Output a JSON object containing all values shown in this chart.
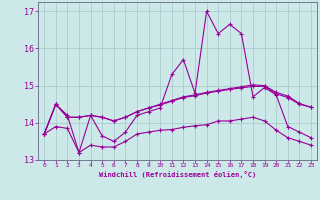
{
  "xlabel": "Windchill (Refroidissement éolien,°C)",
  "background_color": "#cce8e8",
  "grid_color": "#aacccc",
  "line_color": "#990099",
  "x": [
    0,
    1,
    2,
    3,
    4,
    5,
    6,
    7,
    8,
    9,
    10,
    11,
    12,
    13,
    14,
    15,
    16,
    17,
    18,
    19,
    20,
    21,
    22,
    23
  ],
  "series1": [
    13.7,
    14.5,
    14.2,
    13.2,
    14.2,
    13.65,
    13.5,
    13.75,
    14.2,
    14.3,
    14.4,
    15.3,
    15.7,
    14.8,
    17.0,
    16.4,
    16.65,
    16.4,
    14.7,
    14.95,
    14.75,
    13.9,
    13.75,
    13.6
  ],
  "series2": [
    13.7,
    14.5,
    14.15,
    14.15,
    14.2,
    14.15,
    14.05,
    14.15,
    14.3,
    14.4,
    14.5,
    14.6,
    14.7,
    14.75,
    14.82,
    14.87,
    14.92,
    14.97,
    15.02,
    15.0,
    14.82,
    14.72,
    14.52,
    14.42
  ],
  "series3": [
    13.7,
    13.9,
    13.85,
    13.2,
    13.4,
    13.35,
    13.35,
    13.5,
    13.7,
    13.75,
    13.8,
    13.82,
    13.88,
    13.92,
    13.95,
    14.05,
    14.05,
    14.1,
    14.15,
    14.05,
    13.8,
    13.6,
    13.5,
    13.4
  ],
  "series4": [
    13.7,
    14.5,
    14.15,
    14.15,
    14.2,
    14.15,
    14.05,
    14.15,
    14.3,
    14.4,
    14.48,
    14.58,
    14.68,
    14.73,
    14.8,
    14.85,
    14.9,
    14.94,
    14.98,
    14.98,
    14.78,
    14.68,
    14.5,
    14.42
  ],
  "ylim": [
    13.0,
    17.25
  ],
  "yticks": [
    13,
    14,
    15,
    16,
    17
  ],
  "xlim": [
    -0.5,
    23.5
  ],
  "xticks": [
    0,
    1,
    2,
    3,
    4,
    5,
    6,
    7,
    8,
    9,
    10,
    11,
    12,
    13,
    14,
    15,
    16,
    17,
    18,
    19,
    20,
    21,
    22,
    23
  ]
}
